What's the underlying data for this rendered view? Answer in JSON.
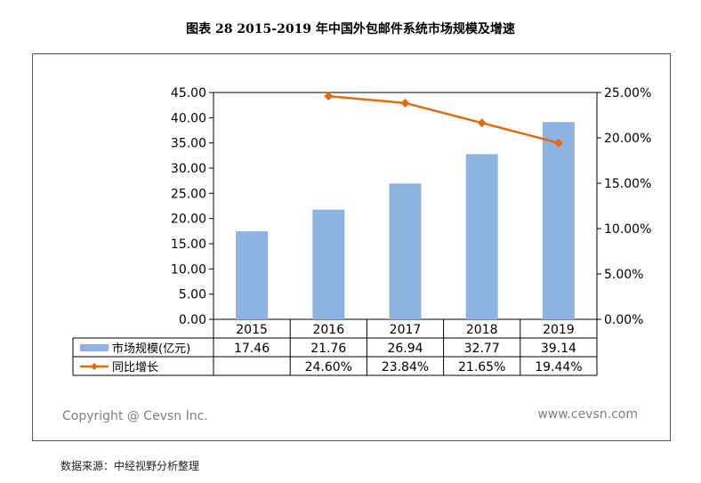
{
  "title": "图表 28  2015-2019 年中国外包邮件系统市场规模及增速",
  "source_note": "数据来源：中经视野分析整理",
  "copyright": "Copyright @ Cevsn Inc.",
  "website": "www.cevsn.com",
  "colors": {
    "bar": "#8db3e2",
    "line": "#e36c0a",
    "grid": "#000000"
  },
  "chart_data": {
    "type": "bar",
    "categories": [
      "2015",
      "2016",
      "2017",
      "2018",
      "2019"
    ],
    "series": [
      {
        "name": "市场规模(亿元)",
        "type": "bar",
        "axis": "left",
        "values": [
          17.46,
          21.76,
          26.94,
          32.77,
          39.14
        ],
        "labels": [
          "17.46",
          "21.76",
          "26.94",
          "32.77",
          "39.14"
        ]
      },
      {
        "name": "同比增长",
        "type": "line",
        "axis": "right",
        "values": [
          null,
          24.6,
          23.84,
          21.65,
          19.44
        ],
        "labels": [
          "",
          "24.60%",
          "23.84%",
          "21.65%",
          "19.44%"
        ]
      }
    ],
    "ylim": [
      0,
      45
    ],
    "y2lim": [
      0,
      25
    ],
    "yticks": [
      "0.00",
      "5.00",
      "10.00",
      "15.00",
      "20.00",
      "25.00",
      "30.00",
      "35.00",
      "40.00",
      "45.00"
    ],
    "y2ticks": [
      "0.00%",
      "5.00%",
      "10.00%",
      "15.00%",
      "20.00%",
      "25.00%"
    ],
    "grid": true,
    "legend": "data-table"
  }
}
